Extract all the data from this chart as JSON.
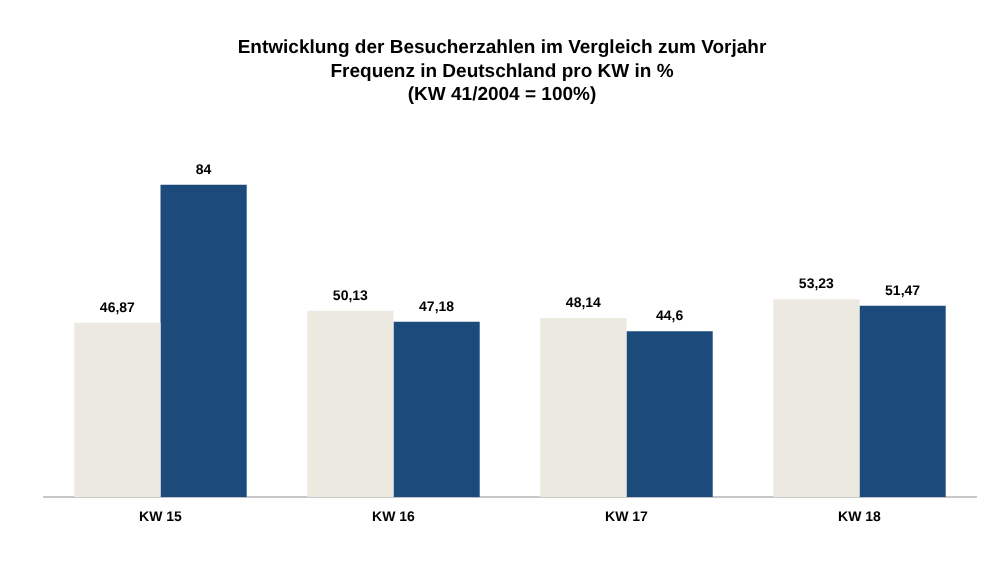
{
  "chart_data": {
    "type": "bar",
    "title": "Entwicklung der Besucherzahlen im Vergleich zum Vorjahr",
    "subtitle": "Frequenz in Deutschland pro KW in %\n(KW 41/2004 = 100%)",
    "categories": [
      "KW 15",
      "KW 16",
      "KW 17",
      "KW 18"
    ],
    "series": [
      {
        "color": "#ece9e1",
        "values": [
          46.87,
          50.13,
          48.14,
          53.23
        ],
        "value_labels": [
          "46,87",
          "50,13",
          "48,14",
          "53,23"
        ]
      },
      {
        "color": "#1c4a7a",
        "values": [
          84,
          47.18,
          44.6,
          51.47
        ],
        "value_labels": [
          "84",
          "47,18",
          "44,6",
          "51,47"
        ]
      }
    ],
    "relative": false,
    "grid": false,
    "legend": false
  }
}
